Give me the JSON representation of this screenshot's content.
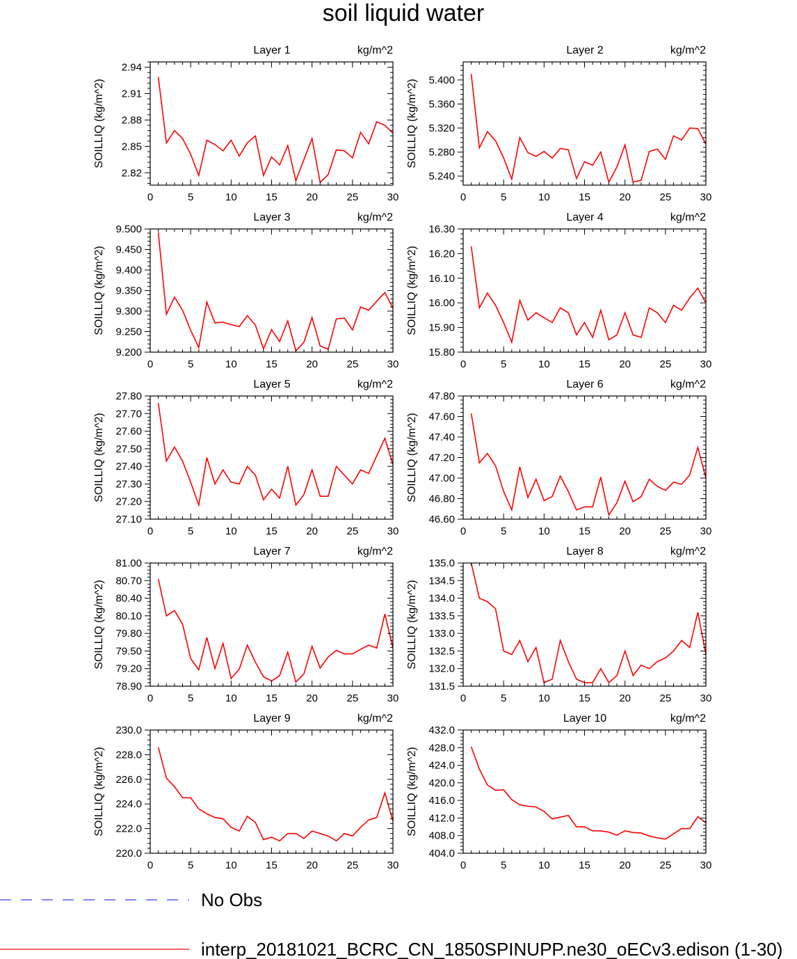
{
  "figure_title": "soil liquid water",
  "units_label": "kg/m^2",
  "ylabel": "SOILLIQ  (kg/m^2)",
  "colors": {
    "model": "#ff0000",
    "obs": "#3b3bff",
    "axis": "#000000"
  },
  "legend": {
    "obs_label": "No Obs",
    "model_label": "interp_20181021_BCRC_CN_1850SPINUPP.ne30_oECv3.edison (1-30)"
  },
  "chart_data": [
    {
      "type": "line",
      "title": "Layer 1",
      "xlabel": "",
      "ylabel": "SOILLIQ  (kg/m^2)",
      "xlim": [
        0,
        30
      ],
      "ylim": [
        2.806,
        2.946
      ],
      "xticks": [
        "0",
        "5",
        "10",
        "15",
        "20",
        "25",
        "30"
      ],
      "yticks": [
        "2.82",
        "2.85",
        "2.88",
        "2.91",
        "2.94"
      ],
      "series": [
        {
          "name": "interp_20181021_BCRC_CN_1850SPINUPP.ne30_oECv3.edison (1-30)",
          "values": [
            2.929,
            2.854,
            2.868,
            2.859,
            2.841,
            2.817,
            2.857,
            2.852,
            2.845,
            2.857,
            2.839,
            2.854,
            2.862,
            2.817,
            2.838,
            2.829,
            2.851,
            2.811,
            2.835,
            2.859,
            2.809,
            2.818,
            2.846,
            2.845,
            2.837,
            2.866,
            2.853,
            2.878,
            2.874,
            2.865
          ]
        }
      ]
    },
    {
      "type": "line",
      "title": "Layer 2",
      "xlabel": "",
      "ylabel": "SOILLIQ  (kg/m^2)",
      "xlim": [
        0,
        30
      ],
      "ylim": [
        5.225,
        5.43
      ],
      "xticks": [
        "0",
        "5",
        "10",
        "15",
        "20",
        "25",
        "30"
      ],
      "yticks": [
        "5.240",
        "5.280",
        "5.320",
        "5.360",
        "5.400"
      ],
      "series": [
        {
          "name": "interp_20181021_BCRC_CN_1850SPINUPP.ne30_oECv3.edison (1-30)",
          "values": [
            5.41,
            5.287,
            5.314,
            5.299,
            5.27,
            5.235,
            5.304,
            5.279,
            5.273,
            5.281,
            5.27,
            5.286,
            5.284,
            5.236,
            5.264,
            5.258,
            5.28,
            5.23,
            5.255,
            5.292,
            5.23,
            5.233,
            5.281,
            5.285,
            5.268,
            5.307,
            5.3,
            5.32,
            5.319,
            5.293
          ]
        }
      ]
    },
    {
      "type": "line",
      "title": "Layer 3",
      "xlabel": "",
      "ylabel": "SOILLIQ  (kg/m^2)",
      "xlim": [
        0,
        30
      ],
      "ylim": [
        9.2,
        9.5
      ],
      "xticks": [
        "0",
        "5",
        "10",
        "15",
        "20",
        "25",
        "30"
      ],
      "yticks": [
        "9.200",
        "9.250",
        "9.300",
        "9.350",
        "9.400",
        "9.450",
        "9.500"
      ],
      "series": [
        {
          "name": "interp_20181021_BCRC_CN_1850SPINUPP.ne30_oECv3.edison (1-30)",
          "values": [
            9.492,
            9.292,
            9.334,
            9.302,
            9.253,
            9.211,
            9.322,
            9.271,
            9.273,
            9.267,
            9.262,
            9.289,
            9.266,
            9.208,
            9.255,
            9.226,
            9.276,
            9.203,
            9.224,
            9.284,
            9.215,
            9.207,
            9.281,
            9.283,
            9.254,
            9.31,
            9.302,
            9.324,
            9.345,
            9.307
          ]
        }
      ]
    },
    {
      "type": "line",
      "title": "Layer 4",
      "xlabel": "",
      "ylabel": "SOILLIQ  (kg/m^2)",
      "xlim": [
        0,
        30
      ],
      "ylim": [
        15.8,
        16.3
      ],
      "xticks": [
        "0",
        "5",
        "10",
        "15",
        "20",
        "25",
        "30"
      ],
      "yticks": [
        "15.80",
        "15.90",
        "16.00",
        "16.10",
        "16.20",
        "16.30"
      ],
      "series": [
        {
          "name": "interp_20181021_BCRC_CN_1850SPINUPP.ne30_oECv3.edison (1-30)",
          "values": [
            16.23,
            15.98,
            16.04,
            15.99,
            15.92,
            15.84,
            16.01,
            15.93,
            15.96,
            15.94,
            15.92,
            15.98,
            15.96,
            15.87,
            15.92,
            15.86,
            15.97,
            15.85,
            15.87,
            15.96,
            15.87,
            15.86,
            15.98,
            15.96,
            15.92,
            15.99,
            15.97,
            16.02,
            16.06,
            16.0
          ]
        }
      ]
    },
    {
      "type": "line",
      "title": "Layer 5",
      "xlabel": "",
      "ylabel": "SOILLIQ  (kg/m^2)",
      "xlim": [
        0,
        30
      ],
      "ylim": [
        27.1,
        27.8
      ],
      "xticks": [
        "0",
        "5",
        "10",
        "15",
        "20",
        "25",
        "30"
      ],
      "yticks": [
        "27.10",
        "27.20",
        "27.30",
        "27.40",
        "27.50",
        "27.60",
        "27.70",
        "27.80"
      ],
      "series": [
        {
          "name": "interp_20181021_BCRC_CN_1850SPINUPP.ne30_oECv3.edison (1-30)",
          "values": [
            27.76,
            27.43,
            27.51,
            27.43,
            27.31,
            27.18,
            27.45,
            27.3,
            27.38,
            27.31,
            27.3,
            27.4,
            27.35,
            27.21,
            27.27,
            27.22,
            27.4,
            27.18,
            27.24,
            27.38,
            27.23,
            27.23,
            27.4,
            27.35,
            27.3,
            27.38,
            27.36,
            27.46,
            27.56,
            27.41
          ]
        }
      ]
    },
    {
      "type": "line",
      "title": "Layer 6",
      "xlabel": "",
      "ylabel": "SOILLIQ  (kg/m^2)",
      "xlim": [
        0,
        30
      ],
      "ylim": [
        46.6,
        47.8
      ],
      "xticks": [
        "0",
        "5",
        "10",
        "15",
        "20",
        "25",
        "30"
      ],
      "yticks": [
        "46.60",
        "46.80",
        "47.00",
        "47.20",
        "47.40",
        "47.60",
        "47.80"
      ],
      "series": [
        {
          "name": "interp_20181021_BCRC_CN_1850SPINUPP.ne30_oECv3.edison (1-30)",
          "values": [
            47.63,
            47.15,
            47.24,
            47.12,
            46.87,
            46.69,
            47.11,
            46.81,
            46.99,
            46.78,
            46.82,
            47.02,
            46.87,
            46.69,
            46.72,
            46.72,
            47.01,
            46.64,
            46.76,
            46.97,
            46.77,
            46.82,
            46.99,
            46.92,
            46.88,
            46.96,
            46.94,
            47.03,
            47.3,
            47.0
          ]
        }
      ]
    },
    {
      "type": "line",
      "title": "Layer 7",
      "xlabel": "",
      "ylabel": "SOILLIQ  (kg/m^2)",
      "xlim": [
        0,
        30
      ],
      "ylim": [
        78.9,
        81.0
      ],
      "xticks": [
        "0",
        "5",
        "10",
        "15",
        "20",
        "25",
        "30"
      ],
      "yticks": [
        "78.90",
        "79.20",
        "79.50",
        "79.80",
        "80.10",
        "80.40",
        "80.70",
        "81.00"
      ],
      "series": [
        {
          "name": "interp_20181021_BCRC_CN_1850SPINUPP.ne30_oECv3.edison (1-30)",
          "values": [
            80.73,
            80.1,
            80.19,
            79.96,
            79.37,
            79.18,
            79.73,
            79.2,
            79.63,
            79.03,
            79.19,
            79.6,
            79.31,
            79.06,
            78.99,
            79.08,
            79.48,
            78.97,
            79.11,
            79.58,
            79.21,
            79.4,
            79.51,
            79.45,
            79.45,
            79.53,
            79.6,
            79.55,
            80.13,
            79.55
          ]
        }
      ]
    },
    {
      "type": "line",
      "title": "Layer 8",
      "xlabel": "",
      "ylabel": "SOILLIQ  (kg/m^2)",
      "xlim": [
        0,
        30
      ],
      "ylim": [
        131.5,
        135.0
      ],
      "xticks": [
        "0",
        "5",
        "10",
        "15",
        "20",
        "25",
        "30"
      ],
      "yticks": [
        "131.5",
        "132.0",
        "132.5",
        "133.0",
        "133.5",
        "134.0",
        "134.5",
        "135.0"
      ],
      "series": [
        {
          "name": "interp_20181021_BCRC_CN_1850SPINUPP.ne30_oECv3.edison (1-30)",
          "values": [
            135.0,
            134.0,
            133.9,
            133.7,
            132.5,
            132.4,
            132.8,
            132.2,
            132.6,
            131.6,
            131.7,
            132.8,
            132.2,
            131.7,
            131.6,
            131.6,
            132.0,
            131.6,
            131.8,
            132.5,
            131.8,
            132.1,
            132.0,
            132.2,
            132.3,
            132.5,
            132.8,
            132.6,
            133.6,
            132.4
          ]
        }
      ]
    },
    {
      "type": "line",
      "title": "Layer 9",
      "xlabel": "",
      "ylabel": "SOILLIQ  (kg/m^2)",
      "xlim": [
        0,
        30
      ],
      "ylim": [
        220.0,
        230.0
      ],
      "xticks": [
        "0",
        "5",
        "10",
        "15",
        "20",
        "25",
        "30"
      ],
      "yticks": [
        "220.0",
        "222.0",
        "224.0",
        "226.0",
        "228.0",
        "230.0"
      ],
      "series": [
        {
          "name": "interp_20181021_BCRC_CN_1850SPINUPP.ne30_oECv3.edison (1-30)",
          "values": [
            228.6,
            226.1,
            225.4,
            224.5,
            224.5,
            223.6,
            223.2,
            222.9,
            222.8,
            222.1,
            221.8,
            223.0,
            222.5,
            221.1,
            221.3,
            221.0,
            221.6,
            221.6,
            221.2,
            221.8,
            221.6,
            221.4,
            221.0,
            221.6,
            221.4,
            222.1,
            222.7,
            222.9,
            224.9,
            222.6
          ]
        }
      ]
    },
    {
      "type": "line",
      "title": "Layer 10",
      "xlabel": "",
      "ylabel": "SOILLIQ  (kg/m^2)",
      "xlim": [
        0,
        30
      ],
      "ylim": [
        404.0,
        432.0
      ],
      "xticks": [
        "0",
        "5",
        "10",
        "15",
        "20",
        "25",
        "30"
      ],
      "yticks": [
        "404.0",
        "408.0",
        "412.0",
        "416.0",
        "420.0",
        "424.0",
        "428.0",
        "432.0"
      ],
      "series": [
        {
          "name": "interp_20181021_BCRC_CN_1850SPINUPP.ne30_oECv3.edison (1-30)",
          "values": [
            428.2,
            423.1,
            419.5,
            418.3,
            418.4,
            416.2,
            415.0,
            414.7,
            414.5,
            413.5,
            411.8,
            412.2,
            412.6,
            410.0,
            410.0,
            409.1,
            409.1,
            408.8,
            408.1,
            409.1,
            408.7,
            408.6,
            407.9,
            407.5,
            407.2,
            408.4,
            409.6,
            409.6,
            412.3,
            410.9
          ]
        }
      ]
    }
  ]
}
